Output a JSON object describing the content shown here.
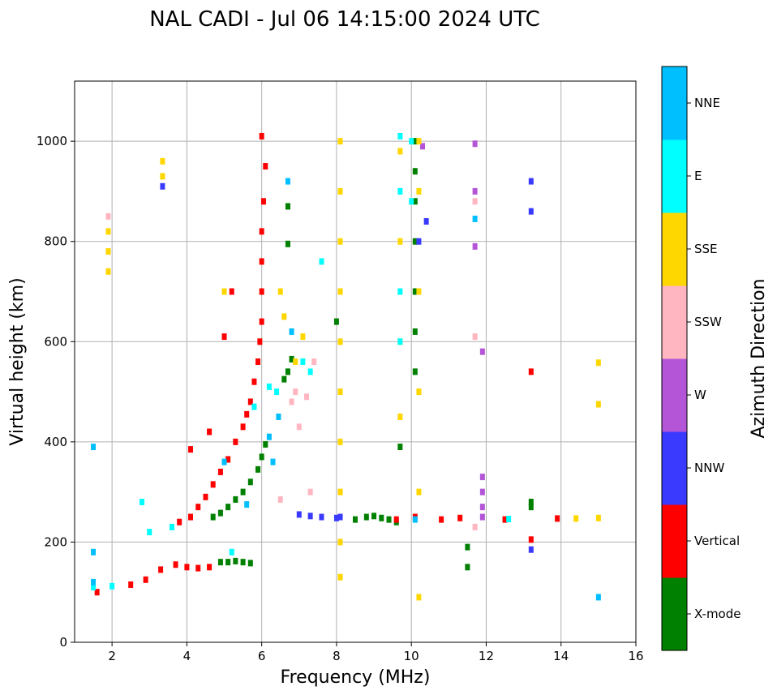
{
  "chart_data": {
    "type": "scatter",
    "title": "NAL CADI - Jul 06 14:15:00 2024 UTC",
    "xlabel": "Frequency (MHz)",
    "ylabel": "Virtual height (km)",
    "xlim": [
      1,
      16
    ],
    "ylim": [
      0,
      1120
    ],
    "xticks": [
      2,
      4,
      6,
      8,
      10,
      12,
      14,
      16
    ],
    "yticks": [
      0,
      200,
      400,
      600,
      800,
      1000
    ],
    "grid": true,
    "colorbar": {
      "label": "Azimuth Direction",
      "categories": [
        "X-mode",
        "Vertical",
        "NNW",
        "W",
        "SSW",
        "SSE",
        "E",
        "NNE"
      ],
      "colors": [
        "#008000",
        "#ff0000",
        "#3a3aff",
        "#b455d8",
        "#ffb6c1",
        "#ffd700",
        "#00ffff",
        "#00bfff"
      ]
    },
    "series": [
      {
        "name": "X-mode",
        "points": [
          [
            4.9,
            160
          ],
          [
            5.1,
            160
          ],
          [
            5.3,
            162
          ],
          [
            5.5,
            160
          ],
          [
            5.7,
            158
          ],
          [
            4.7,
            250
          ],
          [
            4.9,
            258
          ],
          [
            5.1,
            270
          ],
          [
            5.3,
            285
          ],
          [
            5.5,
            300
          ],
          [
            5.7,
            320
          ],
          [
            5.9,
            345
          ],
          [
            6.0,
            370
          ],
          [
            6.1,
            395
          ],
          [
            6.6,
            525
          ],
          [
            6.7,
            540
          ],
          [
            6.8,
            565
          ],
          [
            6.7,
            795
          ],
          [
            6.7,
            870
          ],
          [
            8.5,
            245
          ],
          [
            8.8,
            250
          ],
          [
            9.0,
            252
          ],
          [
            9.2,
            248
          ],
          [
            9.4,
            245
          ],
          [
            9.6,
            240
          ],
          [
            10.1,
            1000
          ],
          [
            10.1,
            940
          ],
          [
            10.1,
            880
          ],
          [
            10.1,
            800
          ],
          [
            10.1,
            700
          ],
          [
            10.1,
            620
          ],
          [
            10.1,
            540
          ],
          [
            11.5,
            190
          ],
          [
            11.5,
            150
          ],
          [
            13.2,
            280
          ],
          [
            13.2,
            270
          ],
          [
            8.0,
            640
          ],
          [
            9.7,
            390
          ]
        ]
      },
      {
        "name": "Vertical",
        "points": [
          [
            1.6,
            100
          ],
          [
            2.5,
            115
          ],
          [
            2.9,
            125
          ],
          [
            3.3,
            145
          ],
          [
            3.7,
            155
          ],
          [
            4.0,
            150
          ],
          [
            4.3,
            148
          ],
          [
            4.6,
            150
          ],
          [
            3.8,
            240
          ],
          [
            4.1,
            250
          ],
          [
            4.3,
            270
          ],
          [
            4.5,
            290
          ],
          [
            4.7,
            315
          ],
          [
            4.9,
            340
          ],
          [
            5.1,
            365
          ],
          [
            5.3,
            400
          ],
          [
            5.5,
            430
          ],
          [
            5.6,
            455
          ],
          [
            5.7,
            480
          ],
          [
            5.8,
            520
          ],
          [
            5.9,
            560
          ],
          [
            5.95,
            600
          ],
          [
            6.0,
            640
          ],
          [
            6.0,
            700
          ],
          [
            6.0,
            760
          ],
          [
            6.0,
            820
          ],
          [
            6.05,
            880
          ],
          [
            6.1,
            950
          ],
          [
            5.2,
            700
          ],
          [
            5.0,
            610
          ],
          [
            4.1,
            385
          ],
          [
            4.6,
            420
          ],
          [
            9.6,
            245
          ],
          [
            10.1,
            250
          ],
          [
            10.8,
            245
          ],
          [
            11.3,
            248
          ],
          [
            12.5,
            245
          ],
          [
            13.2,
            205
          ],
          [
            13.2,
            540
          ],
          [
            13.9,
            247
          ],
          [
            6.0,
            1010
          ]
        ]
      },
      {
        "name": "NNW",
        "points": [
          [
            7.0,
            255
          ],
          [
            7.3,
            252
          ],
          [
            7.6,
            250
          ],
          [
            8.0,
            248
          ],
          [
            3.35,
            910
          ],
          [
            10.2,
            800
          ],
          [
            10.4,
            840
          ],
          [
            13.2,
            920
          ],
          [
            13.2,
            860
          ],
          [
            13.2,
            185
          ],
          [
            8.1,
            250
          ]
        ]
      },
      {
        "name": "W",
        "points": [
          [
            11.7,
            995
          ],
          [
            11.7,
            900
          ],
          [
            11.7,
            790
          ],
          [
            11.9,
            330
          ],
          [
            11.9,
            300
          ],
          [
            11.9,
            270
          ],
          [
            11.9,
            250
          ],
          [
            11.9,
            580
          ],
          [
            10.3,
            990
          ]
        ]
      },
      {
        "name": "SSW",
        "points": [
          [
            1.9,
            850
          ],
          [
            6.8,
            480
          ],
          [
            6.9,
            500
          ],
          [
            7.0,
            430
          ],
          [
            7.2,
            490
          ],
          [
            7.4,
            560
          ],
          [
            11.7,
            880
          ],
          [
            11.7,
            610
          ],
          [
            11.7,
            230
          ],
          [
            7.3,
            300
          ],
          [
            6.5,
            285
          ]
        ]
      },
      {
        "name": "SSE",
        "points": [
          [
            1.9,
            820
          ],
          [
            1.9,
            780
          ],
          [
            1.9,
            740
          ],
          [
            3.35,
            960
          ],
          [
            3.35,
            930
          ],
          [
            5.0,
            700
          ],
          [
            6.5,
            700
          ],
          [
            6.6,
            650
          ],
          [
            6.9,
            560
          ],
          [
            7.1,
            610
          ],
          [
            8.1,
            1000
          ],
          [
            8.1,
            900
          ],
          [
            8.1,
            800
          ],
          [
            8.1,
            700
          ],
          [
            8.1,
            600
          ],
          [
            8.1,
            500
          ],
          [
            8.1,
            400
          ],
          [
            8.1,
            300
          ],
          [
            8.1,
            200
          ],
          [
            8.1,
            130
          ],
          [
            9.7,
            980
          ],
          [
            9.7,
            800
          ],
          [
            9.7,
            600
          ],
          [
            9.7,
            450
          ],
          [
            10.2,
            1000
          ],
          [
            10.2,
            900
          ],
          [
            10.2,
            700
          ],
          [
            10.2,
            500
          ],
          [
            10.2,
            300
          ],
          [
            10.2,
            90
          ],
          [
            15.0,
            558
          ],
          [
            15.0,
            475
          ],
          [
            14.4,
            247
          ],
          [
            15.0,
            248
          ]
        ]
      },
      {
        "name": "E",
        "points": [
          [
            1.5,
            110
          ],
          [
            2.0,
            112
          ],
          [
            2.8,
            280
          ],
          [
            3.0,
            220
          ],
          [
            3.6,
            230
          ],
          [
            5.2,
            180
          ],
          [
            5.8,
            470
          ],
          [
            6.2,
            510
          ],
          [
            6.4,
            500
          ],
          [
            7.1,
            560
          ],
          [
            7.3,
            540
          ],
          [
            9.7,
            1010
          ],
          [
            9.7,
            900
          ],
          [
            9.7,
            700
          ],
          [
            9.7,
            600
          ],
          [
            10.0,
            1000
          ],
          [
            10.0,
            880
          ],
          [
            12.6,
            246
          ],
          [
            7.6,
            760
          ]
        ]
      },
      {
        "name": "NNE",
        "points": [
          [
            1.5,
            390
          ],
          [
            1.5,
            180
          ],
          [
            1.5,
            120
          ],
          [
            5.0,
            360
          ],
          [
            5.6,
            275
          ],
          [
            6.2,
            410
          ],
          [
            6.3,
            360
          ],
          [
            6.7,
            920
          ],
          [
            6.8,
            620
          ],
          [
            11.7,
            845
          ],
          [
            15.0,
            90
          ],
          [
            6.45,
            450
          ],
          [
            10.1,
            245
          ]
        ]
      }
    ]
  }
}
